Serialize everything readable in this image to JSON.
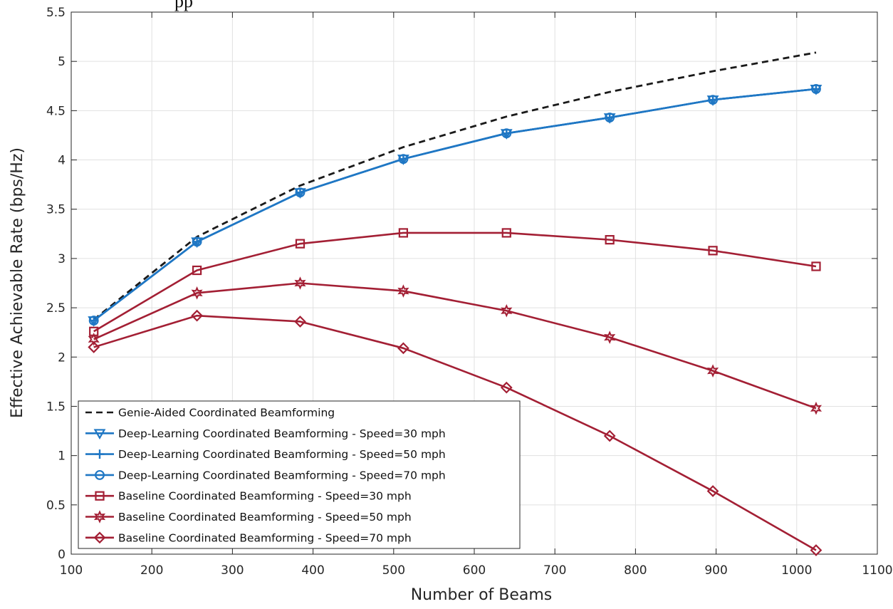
{
  "header": {
    "clipped_text": "pp"
  },
  "chart_data": {
    "type": "line",
    "title": "",
    "xlabel": "Number of Beams",
    "ylabel": "Effective Achievable Rate (bps/Hz)",
    "xlim": [
      100,
      1100
    ],
    "ylim": [
      0,
      5.5
    ],
    "xticks": [
      100,
      200,
      300,
      400,
      500,
      600,
      700,
      800,
      900,
      1000,
      1100
    ],
    "xtick_labels": [
      "100",
      "200",
      "300",
      "400",
      "500",
      "600",
      "700",
      "800",
      "900",
      "1000",
      "1100"
    ],
    "yticks": [
      0,
      0.5,
      1,
      1.5,
      2,
      2.5,
      3,
      3.5,
      4,
      4.5,
      5,
      5.5
    ],
    "ytick_labels": [
      "0",
      "0.5",
      "1",
      "1.5",
      "2",
      "2.5",
      "3",
      "3.5",
      "4",
      "4.5",
      "5",
      "5.5"
    ],
    "grid": true,
    "legend_position": "bottom-left",
    "x": [
      128,
      256,
      384,
      512,
      640,
      768,
      896,
      1024
    ],
    "series": [
      {
        "name": "Genie-Aided Coordinated Beamforming",
        "values": [
          2.38,
          3.22,
          3.74,
          4.13,
          4.44,
          4.69,
          4.9,
          5.09
        ],
        "color": "#1a1a1a",
        "dash": "dashed",
        "marker": "none"
      },
      {
        "name": "Deep-Learning Coordinated Beamforming - Speed=30 mph",
        "values": [
          2.37,
          3.17,
          3.67,
          4.01,
          4.27,
          4.43,
          4.61,
          4.72
        ],
        "color": "#1f77c4",
        "dash": "solid",
        "marker": "triangle-down"
      },
      {
        "name": "Deep-Learning Coordinated Beamforming - Speed=50 mph",
        "values": [
          2.37,
          3.17,
          3.67,
          4.01,
          4.27,
          4.43,
          4.61,
          4.72
        ],
        "color": "#1f77c4",
        "dash": "solid",
        "marker": "plus"
      },
      {
        "name": "Deep-Learning Coordinated Beamforming - Speed=70 mph",
        "values": [
          2.37,
          3.17,
          3.67,
          4.01,
          4.27,
          4.43,
          4.61,
          4.72
        ],
        "color": "#1f77c4",
        "dash": "solid",
        "marker": "circle"
      },
      {
        "name": "Baseline Coordinated Beamforming - Speed=30 mph",
        "values": [
          2.26,
          2.88,
          3.15,
          3.26,
          3.26,
          3.19,
          3.08,
          2.92
        ],
        "color": "#a31f34",
        "dash": "solid",
        "marker": "square"
      },
      {
        "name": "Baseline Coordinated Beamforming - Speed=50 mph",
        "values": [
          2.18,
          2.65,
          2.75,
          2.67,
          2.47,
          2.2,
          1.86,
          1.48
        ],
        "color": "#a31f34",
        "dash": "solid",
        "marker": "hexagram"
      },
      {
        "name": "Baseline Coordinated Beamforming - Speed=70 mph",
        "values": [
          2.1,
          2.42,
          2.36,
          2.09,
          1.69,
          1.2,
          0.64,
          0.04
        ],
        "color": "#a31f34",
        "dash": "solid",
        "marker": "diamond"
      }
    ]
  }
}
